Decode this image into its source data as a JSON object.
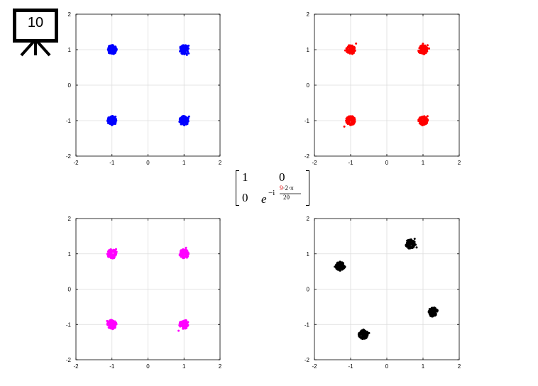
{
  "badge": {
    "number": "10",
    "icon": "presentation-board-icon"
  },
  "matrix": {
    "r1c1": "1",
    "r1c2": "0",
    "r2c1": "0",
    "base": "e",
    "exp_prefix": "−i",
    "num_highlight": "9",
    "num_rest": "·2·π",
    "den": "20",
    "highlight_color": "#e00000"
  },
  "chart_data": [
    {
      "type": "scatter",
      "title": "",
      "xlim": [
        -2,
        2
      ],
      "ylim": [
        -2,
        2
      ],
      "xticks": [
        "-2",
        "-1",
        "0",
        "1",
        "2"
      ],
      "yticks": [
        "2",
        "1",
        "0",
        "-1",
        "-2"
      ],
      "grid": true,
      "color": "#0000ff",
      "clusters": [
        {
          "x": -1,
          "y": 1
        },
        {
          "x": 1,
          "y": 1
        },
        {
          "x": -1,
          "y": -1
        },
        {
          "x": 1,
          "y": -1
        }
      ]
    },
    {
      "type": "scatter",
      "title": "",
      "xlim": [
        -2,
        2
      ],
      "ylim": [
        -2,
        2
      ],
      "xticks": [
        "-2",
        "-1",
        "0",
        "1",
        "2"
      ],
      "yticks": [
        "2",
        "1",
        "0",
        "-1",
        "-2"
      ],
      "grid": true,
      "color": "#ff0000",
      "clusters": [
        {
          "x": -1,
          "y": 1
        },
        {
          "x": 1,
          "y": 1
        },
        {
          "x": -1,
          "y": -1
        },
        {
          "x": 1,
          "y": -1
        }
      ]
    },
    {
      "type": "scatter",
      "title": "",
      "xlim": [
        -2,
        2
      ],
      "ylim": [
        -2,
        2
      ],
      "xticks": [
        "-2",
        "-1",
        "0",
        "1",
        "2"
      ],
      "yticks": [
        "2",
        "1",
        "0",
        "-1",
        "-2"
      ],
      "grid": true,
      "color": "#ff00ff",
      "clusters": [
        {
          "x": -1,
          "y": 1
        },
        {
          "x": 1,
          "y": 1
        },
        {
          "x": -1,
          "y": -1
        },
        {
          "x": 1,
          "y": -1
        }
      ]
    },
    {
      "type": "scatter",
      "title": "",
      "xlim": [
        -2,
        2
      ],
      "ylim": [
        -2,
        2
      ],
      "xticks": [
        "-2",
        "-1",
        "0",
        "1",
        "2"
      ],
      "yticks": [
        "2",
        "1",
        "0",
        "-1",
        "-2"
      ],
      "grid": true,
      "color": "#000000",
      "clusters": [
        {
          "x": 0.65,
          "y": 1.28
        },
        {
          "x": -1.28,
          "y": 0.65
        },
        {
          "x": 1.28,
          "y": -0.65
        },
        {
          "x": -0.65,
          "y": -1.28
        }
      ]
    }
  ]
}
